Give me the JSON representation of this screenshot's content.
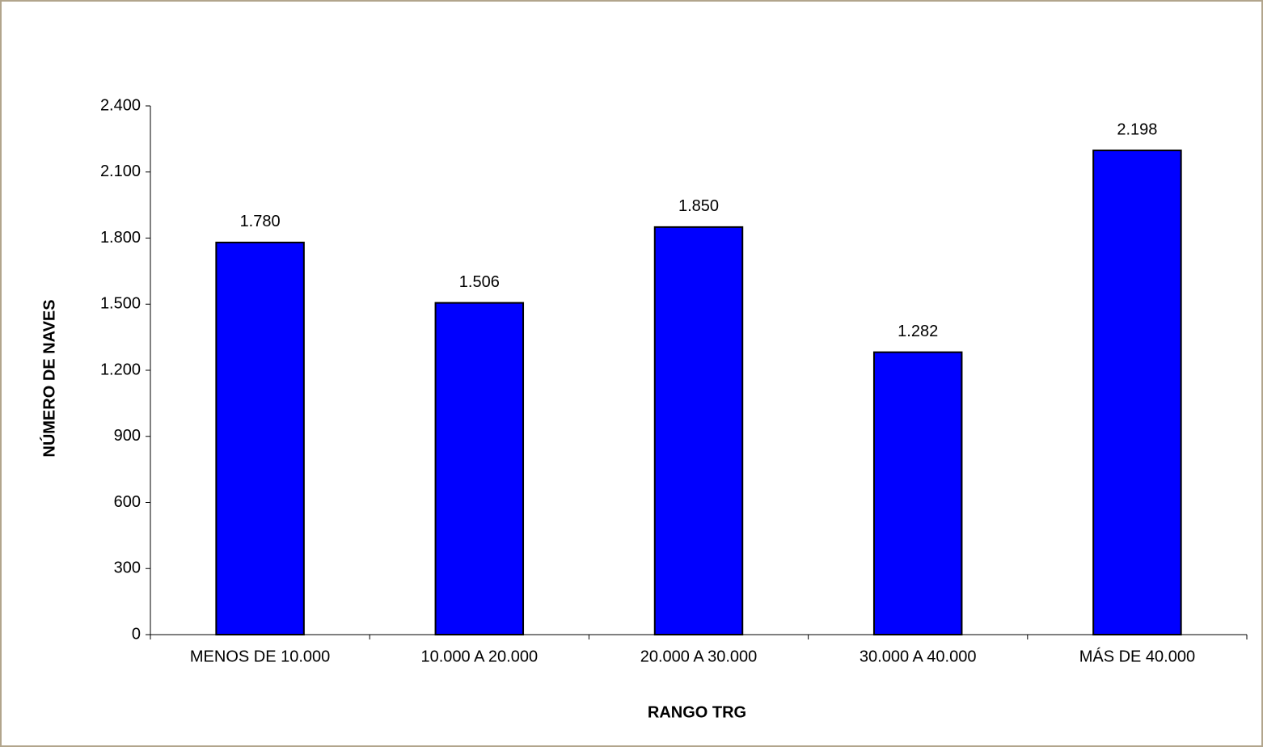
{
  "chart_data": {
    "type": "bar",
    "x_label": "RANGO TRG",
    "y_label": "NÚMERO DE NAVES",
    "categories": [
      "MENOS DE 10.000",
      "10.000 A 20.000",
      "20.000 A 30.000",
      "30.000 A 40.000",
      "MÁS DE 40.000"
    ],
    "values": [
      1780,
      1506,
      1850,
      1282,
      2198
    ],
    "value_labels": [
      "1.780",
      "1.506",
      "1.850",
      "1.282",
      "2.198"
    ],
    "color": "#0000ff",
    "ylim": [
      0,
      2400
    ],
    "yticks": [
      0,
      300,
      600,
      900,
      {
        "value": 1200,
        "label": "1.200"
      },
      {
        "value": 1500,
        "label": "1.500"
      },
      {
        "value": 1800,
        "label": "1.800"
      },
      {
        "value": 2100,
        "label": "2.100"
      },
      {
        "value": 2400,
        "label": "2.400"
      }
    ],
    "grid": false
  }
}
